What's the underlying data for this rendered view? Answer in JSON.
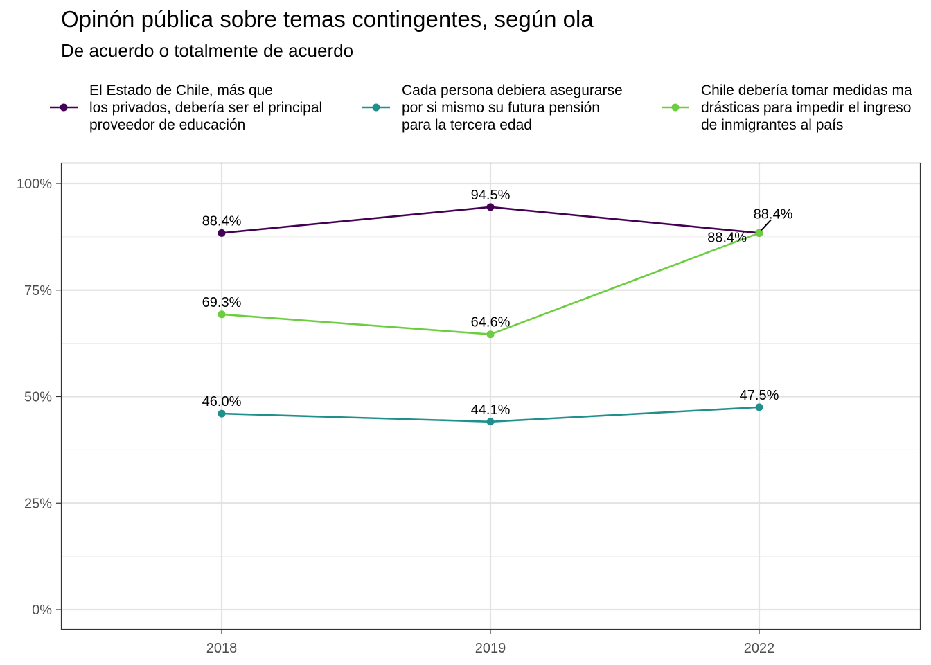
{
  "chart_data": {
    "type": "line",
    "title": "Opinón pública sobre temas contingentes, según ola",
    "subtitle": "De acuerdo o totalmente de acuerdo",
    "categories": [
      "2018",
      "2019",
      "2022"
    ],
    "ylim": [
      0,
      100
    ],
    "y_ticks": [
      0,
      25,
      50,
      75,
      100
    ],
    "y_tick_labels": [
      "0%",
      "25%",
      "50%",
      "75%",
      "100%"
    ],
    "grid": true,
    "legend_position": "top",
    "series": [
      {
        "name_lines": [
          "El Estado de Chile, más que",
          "los privados, debería ser el principal",
          "proveedor de educación"
        ],
        "color": "#440154",
        "values": [
          88.4,
          94.5,
          88.4
        ],
        "labels": [
          "88.4%",
          "94.5%",
          "88.4%"
        ]
      },
      {
        "name_lines": [
          "Cada persona debiera asegurarse",
          "por si mismo su futura pensión",
          "para la tercera edad"
        ],
        "color": "#21908C",
        "values": [
          46.0,
          44.1,
          47.5
        ],
        "labels": [
          "46.0%",
          "44.1%",
          "47.5%"
        ]
      },
      {
        "name_lines": [
          "Chile debería tomar medidas ma",
          "drásticas para impedir el ingreso",
          "de inmigrantes al país"
        ],
        "color": "#6CCE3F",
        "values": [
          69.3,
          64.6,
          88.4
        ],
        "labels": [
          "69.3%",
          "64.6%",
          "88.4%"
        ]
      }
    ]
  }
}
